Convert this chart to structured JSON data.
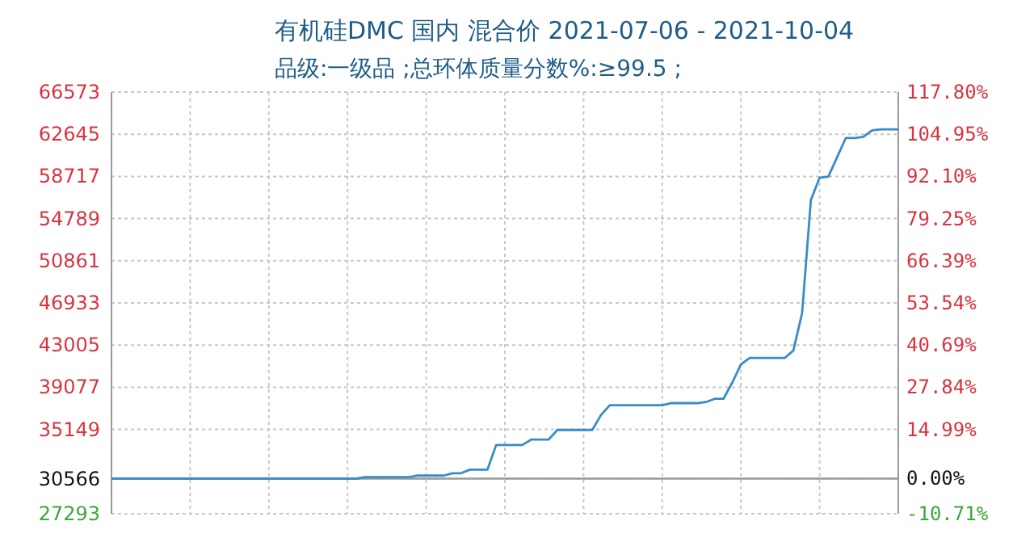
{
  "chart_data": {
    "type": "line",
    "title": "有机硅DMC 国内 混合价 2021-07-06 - 2021-10-04",
    "subtitle": "品级:一级品 ;总环体质量分数%:≥99.5 ;",
    "categories": [
      null,
      null,
      null,
      null,
      null,
      null,
      null,
      null,
      null,
      null,
      null,
      null,
      null,
      null,
      null,
      null,
      null,
      null,
      null,
      null,
      null,
      null,
      null,
      null,
      null,
      null,
      null,
      null,
      null,
      null,
      null,
      null,
      null,
      null,
      null,
      null,
      null,
      null,
      null,
      null,
      null,
      null,
      null,
      null,
      null,
      null,
      null,
      null,
      null,
      null,
      null,
      null,
      null,
      null,
      null,
      null,
      null,
      null,
      null,
      null,
      null,
      null,
      null,
      null,
      null,
      null,
      null,
      null,
      null,
      null,
      null,
      null,
      null,
      null,
      null,
      null,
      null,
      null,
      null,
      null,
      null,
      null,
      null,
      null,
      null,
      null,
      null,
      null,
      null,
      null,
      null
    ],
    "series": [
      {
        "color": "#3a8cc6",
        "values": [
          30566,
          30566,
          30566,
          30566,
          30566,
          30566,
          30566,
          30566,
          30566,
          30566,
          30566,
          30566,
          30566,
          30566,
          30566,
          30566,
          30566,
          30566,
          30566,
          30566,
          30566,
          30566,
          30566,
          30566,
          30566,
          30566,
          30566,
          30566,
          30566,
          30700,
          30700,
          30700,
          30700,
          30700,
          30700,
          30850,
          30850,
          30850,
          30850,
          31070,
          31070,
          31400,
          31400,
          31400,
          33700,
          33700,
          33700,
          33700,
          34200,
          34200,
          34200,
          35100,
          35100,
          35100,
          35100,
          35100,
          36500,
          37400,
          37400,
          37400,
          37400,
          37400,
          37400,
          37400,
          37600,
          37600,
          37600,
          37600,
          37700,
          38000,
          38000,
          39500,
          41200,
          41800,
          41800,
          41800,
          41800,
          41800,
          42500,
          46000,
          56500,
          58600,
          58700,
          60500,
          62300,
          62300,
          62400,
          63000,
          63100,
          63100,
          63100
        ]
      }
    ],
    "ylim": [
      27293,
      66573
    ],
    "yticks": [
      27293,
      30566,
      35149,
      39077,
      43005,
      46933,
      50861,
      54789,
      58717,
      62645,
      66573
    ],
    "y2lim": [
      -10.71,
      117.8
    ],
    "y2ticks": [
      {
        "value": -10.71,
        "label": "-10.71%"
      },
      {
        "value": 0,
        "label": "0.00%"
      },
      {
        "value": 14.99,
        "label": "14.99%"
      },
      {
        "value": 27.84,
        "label": "27.84%"
      },
      {
        "value": 40.69,
        "label": "40.69%"
      },
      {
        "value": 53.54,
        "label": "53.54%"
      },
      {
        "value": 66.39,
        "label": "66.39%"
      },
      {
        "value": 79.25,
        "label": "79.25%"
      },
      {
        "value": 92.1,
        "label": "92.10%"
      },
      {
        "value": 104.95,
        "label": "104.95%"
      },
      {
        "value": 117.8,
        "label": "117.80%"
      }
    ],
    "ref_lines": [
      {
        "axis": "y",
        "value": 30566,
        "color": "#9a9a9a"
      }
    ],
    "grid": true,
    "marker": "none",
    "line_style": "solid"
  }
}
